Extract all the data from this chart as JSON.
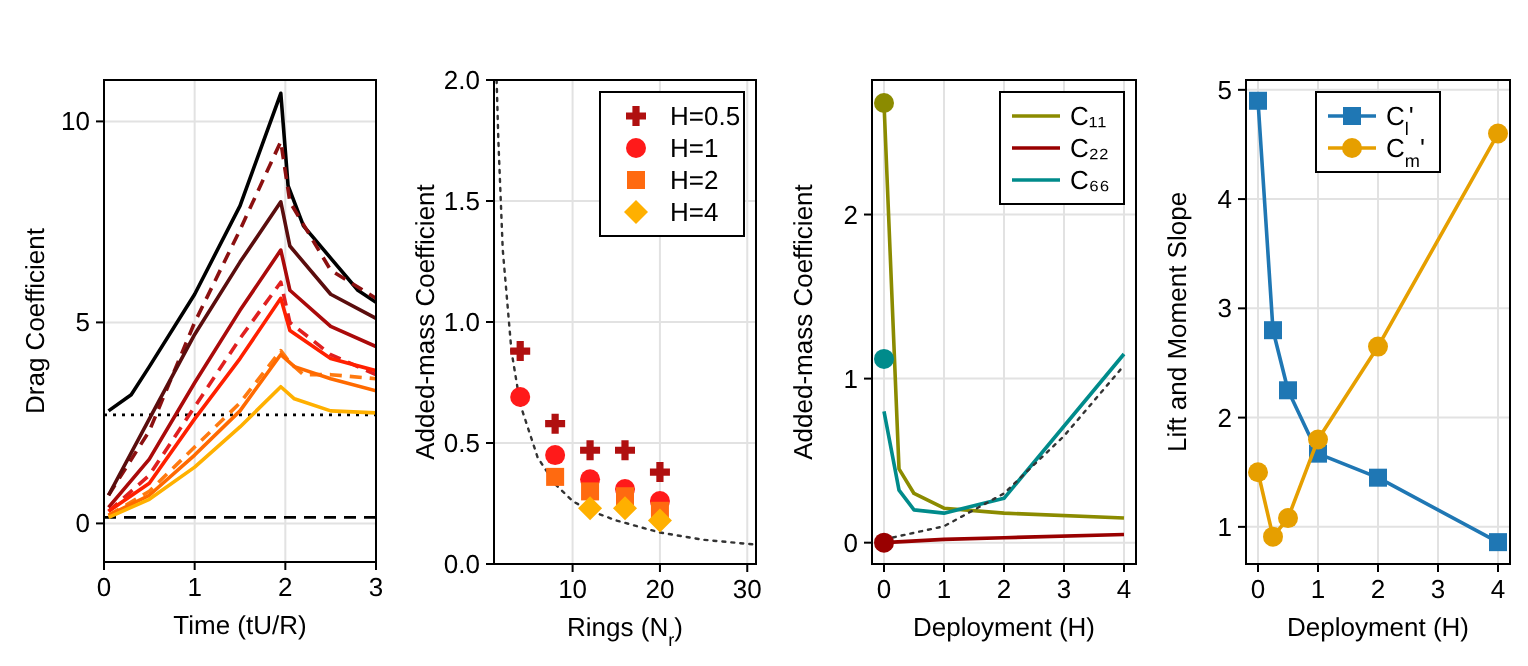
{
  "chart_data": [
    {
      "type": "line",
      "xlabel": "Time (tU/R)",
      "ylabel": "Drag Coefficient",
      "xlim": [
        0,
        3
      ],
      "ylim": [
        -0.96,
        11.03
      ],
      "xticks": [
        0,
        1,
        2,
        3
      ],
      "yticks": [
        0,
        5,
        10
      ],
      "grid": true,
      "legend": false,
      "line_style": "solid",
      "ref_lines": [
        {
          "axis": "y",
          "value": 2.7,
          "color": "#000000",
          "line_style": "dotted"
        },
        {
          "axis": "y",
          "value": 0.15,
          "color": "#000000",
          "line_style": "dashed"
        }
      ],
      "series": [
        {
          "color": "#000000",
          "x": [
            0.05,
            0.3,
            0.5,
            1,
            1.5,
            1.95,
            2.03,
            2.2,
            2.5,
            2.8,
            3
          ],
          "values": [
            2.8,
            3.2,
            3.9,
            5.7,
            7.9,
            10.7,
            8.4,
            7.4,
            6.6,
            5.8,
            5.5
          ]
        },
        {
          "color": "#8b1010",
          "line_style": "dashed",
          "x": [
            0.05,
            0.5,
            1,
            1.5,
            1.95,
            2.05,
            2.5,
            3
          ],
          "values": [
            0.7,
            2.3,
            5,
            7.3,
            9.5,
            8,
            6.3,
            5.6
          ]
        },
        {
          "color": "#5a0d0d",
          "x": [
            0.05,
            0.5,
            1,
            1.5,
            1.95,
            2.05,
            2.5,
            3
          ],
          "values": [
            0.7,
            2.6,
            4.7,
            6.5,
            8,
            6.9,
            5.7,
            5.1
          ]
        },
        {
          "color": "#aa0a0a",
          "x": [
            0.05,
            0.5,
            1,
            1.5,
            1.95,
            2.05,
            2.5,
            3
          ],
          "values": [
            0.4,
            1.6,
            3.5,
            5.3,
            6.8,
            5.8,
            4.9,
            4.4
          ]
        },
        {
          "color": "#e02020",
          "line_style": "dashed",
          "x": [
            0.05,
            0.5,
            1,
            1.5,
            1.95,
            2.05,
            2.5,
            3
          ],
          "values": [
            0.3,
            1.2,
            2.9,
            4.6,
            6,
            5,
            4.2,
            3.7
          ]
        },
        {
          "color": "#ff2000",
          "x": [
            0.05,
            0.5,
            1,
            1.5,
            1.95,
            2.05,
            2.5,
            3
          ],
          "values": [
            0.3,
            1,
            2.6,
            4.1,
            5.6,
            4.8,
            4.1,
            3.8
          ]
        },
        {
          "color": "#ff7a10",
          "line_style": "dashed",
          "x": [
            0.05,
            0.5,
            1,
            1.5,
            1.95,
            2.05,
            2.2,
            2.5,
            3
          ],
          "values": [
            0.2,
            0.8,
            1.9,
            3,
            4.3,
            4,
            3.7,
            3.7,
            3.6
          ]
        },
        {
          "color": "#ff6a00",
          "x": [
            0.05,
            0.5,
            1,
            1.5,
            1.95,
            2.1,
            2.5,
            3
          ],
          "values": [
            0.2,
            0.7,
            1.7,
            2.8,
            4.2,
            3.9,
            3.6,
            3.3
          ]
        },
        {
          "color": "#ffb000",
          "x": [
            0.05,
            0.5,
            1,
            1.5,
            1.95,
            2.1,
            2.5,
            3
          ],
          "values": [
            0.15,
            0.6,
            1.4,
            2.4,
            3.4,
            3.1,
            2.8,
            2.75
          ]
        }
      ]
    },
    {
      "type": "scatter",
      "xlabel": "Rings (N$_{r}$)",
      "ylabel": "Added-mass Coefficient",
      "xlim": [
        1,
        31
      ],
      "ylim": [
        0,
        2
      ],
      "xticks": [
        10,
        20,
        30
      ],
      "yticks": [
        {
          "value": 0,
          "label": "0.0"
        },
        {
          "value": 0.5,
          "label": "0.5"
        },
        {
          "value": 1,
          "label": "1.0"
        },
        {
          "value": 1.5,
          "label": "1.5"
        },
        {
          "value": 2,
          "label": "2.0"
        }
      ],
      "grid": true,
      "legend": "top right",
      "series": [
        {
          "type": "line",
          "color": "#333333",
          "line_style": "dotted",
          "marker": "none",
          "x": [
            1.3,
            1.5,
            2,
            3,
            4,
            6,
            8,
            10,
            12,
            15,
            20,
            25,
            31
          ],
          "values": [
            2,
            1.75,
            1.3,
            0.88,
            0.66,
            0.44,
            0.33,
            0.26,
            0.22,
            0.18,
            0.13,
            0.1,
            0.08
          ]
        },
        {
          "name": "H=0.5",
          "color": "#b01010",
          "marker": "cross",
          "x": [
            4,
            8,
            12,
            16,
            20
          ],
          "values": [
            0.88,
            0.58,
            0.47,
            0.47,
            0.38
          ]
        },
        {
          "name": "H=1",
          "color": "#ff1a1a",
          "marker": "circle",
          "x": [
            4,
            8,
            12,
            16,
            20
          ],
          "values": [
            0.69,
            0.45,
            0.35,
            0.31,
            0.26
          ]
        },
        {
          "name": "H=2",
          "color": "#ff6a10",
          "marker": "square",
          "x": [
            8,
            12,
            16,
            20
          ],
          "values": [
            0.36,
            0.3,
            0.28,
            0.22
          ]
        },
        {
          "name": "H=4",
          "color": "#ffb000",
          "marker": "diamond",
          "x": [
            12,
            16,
            20
          ],
          "values": [
            0.23,
            0.23,
            0.18
          ]
        }
      ]
    },
    {
      "type": "line",
      "xlabel": "Deployment (H)",
      "ylabel": "Added-mass Coefficient",
      "xlim": [
        -0.2,
        4.2
      ],
      "ylim": [
        -0.13,
        2.82
      ],
      "xticks": [
        0,
        1,
        2,
        3,
        4
      ],
      "yticks": [
        0,
        1,
        2
      ],
      "grid": true,
      "legend": "top right",
      "marker": "none",
      "series": [
        {
          "name": "C₁₁",
          "color": "#8b8b00",
          "x": [
            0,
            0.25,
            0.5,
            1,
            2,
            4
          ],
          "values": [
            2.68,
            0.45,
            0.3,
            0.21,
            0.18,
            0.15
          ]
        },
        {
          "name": "C₂₂",
          "color": "#990000",
          "x": [
            0,
            1,
            2,
            4
          ],
          "values": [
            0,
            0.02,
            0.03,
            0.05
          ]
        },
        {
          "name": "C₆₆",
          "color": "#008b8b",
          "x": [
            0,
            0.25,
            0.5,
            1,
            2,
            4
          ],
          "values": [
            0.8,
            0.32,
            0.2,
            0.18,
            0.27,
            1.15
          ]
        },
        {
          "type": "line",
          "color": "#333333",
          "line_style": "dotted",
          "x": [
            0,
            1,
            2,
            3,
            4
          ],
          "values": [
            0.02,
            0.1,
            0.3,
            0.65,
            1.08
          ]
        },
        {
          "type": "scatter",
          "marker": "circle",
          "color": "#8b8b00",
          "x": [
            0
          ],
          "values": [
            2.68
          ]
        },
        {
          "type": "scatter",
          "marker": "circle",
          "color": "#990000",
          "x": [
            0
          ],
          "values": [
            0
          ]
        },
        {
          "type": "scatter",
          "marker": "circle",
          "color": "#008b8b",
          "x": [
            0
          ],
          "values": [
            1.12
          ]
        }
      ]
    },
    {
      "type": "line",
      "xlabel": "Deployment (H)",
      "ylabel": "Lift and Moment Slope",
      "xlim": [
        -0.2,
        4.2
      ],
      "ylim": [
        0.66,
        5.09
      ],
      "xticks": [
        0,
        1,
        2,
        3,
        4
      ],
      "yticks": [
        1,
        2,
        3,
        4,
        5
      ],
      "grid": true,
      "legend": "top",
      "series": [
        {
          "name": "C$_{l}$'",
          "color": "#1f77b4",
          "marker": "square",
          "x": [
            0,
            0.25,
            0.5,
            1,
            2,
            4
          ],
          "values": [
            4.9,
            2.8,
            2.25,
            1.67,
            1.45,
            0.86
          ]
        },
        {
          "name": "C$_{m}$'",
          "color": "#e69f00",
          "marker": "circle",
          "x": [
            0,
            0.25,
            0.5,
            1,
            2,
            4
          ],
          "values": [
            1.5,
            0.91,
            1.08,
            1.8,
            2.65,
            4.6
          ]
        }
      ]
    }
  ]
}
